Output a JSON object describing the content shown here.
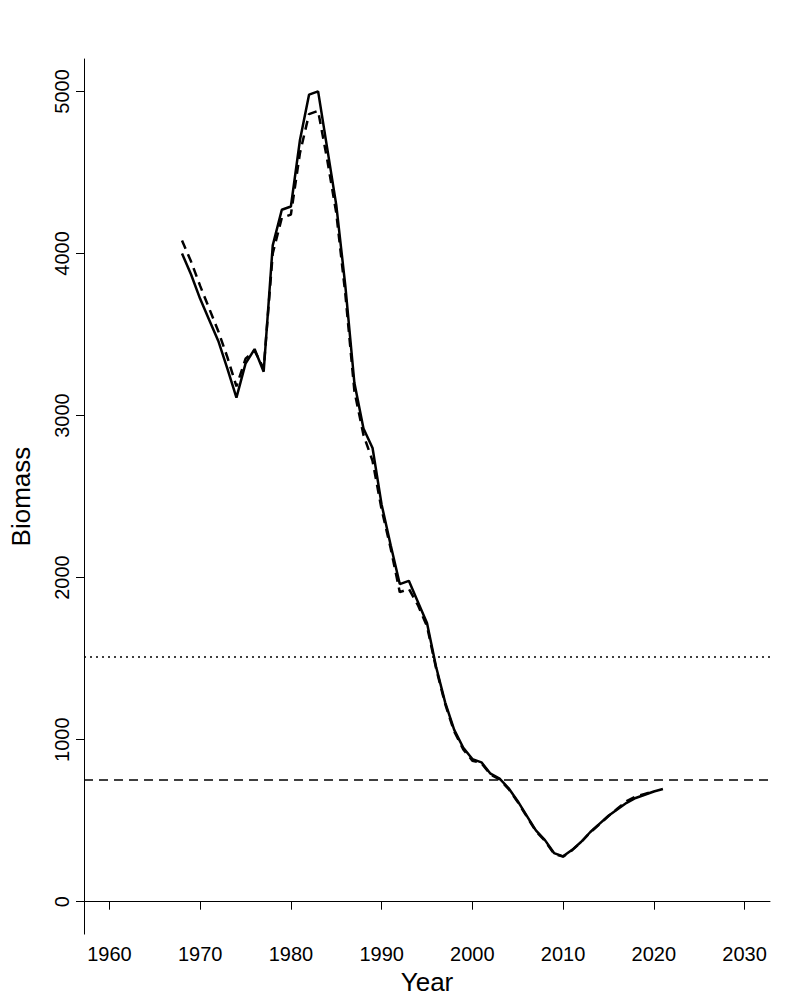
{
  "chart_data": {
    "type": "line",
    "x_label": "Year",
    "y_label": "Biomass",
    "x": [
      1968,
      1969,
      1970,
      1971,
      1972,
      1973,
      1974,
      1975,
      1976,
      1977,
      1978,
      1979,
      1980,
      1981,
      1982,
      1983,
      1984,
      1985,
      1986,
      1987,
      1988,
      1989,
      1990,
      1991,
      1992,
      1993,
      1994,
      1995,
      1996,
      1997,
      1998,
      1999,
      2000,
      2001,
      2002,
      2003,
      2004,
      2005,
      2006,
      2007,
      2008,
      2009,
      2010,
      2011,
      2012,
      2013,
      2014,
      2015,
      2016,
      2017,
      2018,
      2019,
      2020,
      2021
    ],
    "series": [
      {
        "color": "#000000",
        "line_style": "solid",
        "values": [
          4000,
          3870,
          3720,
          3590,
          3460,
          3290,
          3110,
          3320,
          3410,
          3270,
          4050,
          4270,
          4290,
          4700,
          4980,
          5000,
          4650,
          4300,
          3800,
          3200,
          2920,
          2800,
          2450,
          2200,
          1960,
          1980,
          1850,
          1720,
          1450,
          1230,
          1060,
          950,
          880,
          860,
          790,
          760,
          700,
          620,
          530,
          440,
          380,
          300,
          280,
          320,
          370,
          430,
          480,
          530,
          570,
          610,
          640,
          660,
          680,
          695
        ]
      },
      {
        "color": "#000000",
        "line_style": "dashed",
        "values": [
          4080,
          3950,
          3800,
          3660,
          3520,
          3360,
          3180,
          3350,
          3400,
          3290,
          4000,
          4220,
          4240,
          4620,
          4860,
          4880,
          4580,
          4250,
          3750,
          3150,
          2880,
          2720,
          2420,
          2180,
          1910,
          1930,
          1830,
          1700,
          1440,
          1220,
          1050,
          940,
          870,
          855,
          785,
          755,
          695,
          615,
          525,
          435,
          375,
          295,
          278,
          318,
          368,
          428,
          478,
          528,
          575,
          620,
          650,
          665,
          680,
          null
        ]
      }
    ],
    "reference_lines": [
      {
        "y": 1510,
        "line_style": "dotted",
        "color": "#000000"
      },
      {
        "y": 755,
        "line_style": "dashed",
        "color": "#000000"
      }
    ],
    "xlim": [
      1957.2,
      2032.8
    ],
    "ylim": [
      -200,
      5200
    ],
    "xticks": [
      1960,
      1970,
      1980,
      1990,
      2000,
      2010,
      2020,
      2030
    ],
    "yticks": [
      0,
      1000,
      2000,
      3000,
      4000,
      5000
    ],
    "grid": false
  }
}
